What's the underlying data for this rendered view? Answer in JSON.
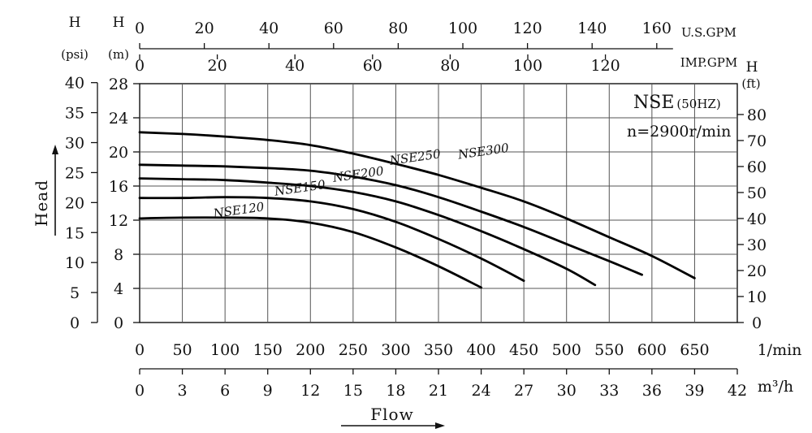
{
  "chart_data": {
    "type": "line",
    "title": "NSE",
    "title_suffix": "(50HZ)",
    "subtitle": "n=2900r/min",
    "x_axes": {
      "lpm": {
        "unit": "1/min",
        "ticks": [
          0,
          50,
          100,
          150,
          200,
          250,
          300,
          350,
          400,
          450,
          500,
          550,
          600,
          650
        ]
      },
      "m3h": {
        "unit": "m³/h",
        "ticks": [
          0,
          3,
          6,
          9,
          12,
          15,
          18,
          21,
          24,
          27,
          30,
          33,
          36,
          39,
          42
        ]
      },
      "us_gpm": {
        "unit": "U.S.GPM",
        "ticks": [
          0,
          20,
          40,
          60,
          80,
          100,
          120,
          140,
          160
        ]
      },
      "imp_gpm": {
        "unit": "IMP.GPM",
        "ticks": [
          0,
          20,
          40,
          60,
          80,
          100,
          120
        ]
      },
      "xlabel": "Flow"
    },
    "y_axes": {
      "psi": {
        "unit_top": "H",
        "unit": "(psi)",
        "ticks": [
          0,
          5,
          10,
          15,
          20,
          25,
          30,
          35,
          40
        ]
      },
      "m": {
        "unit_top": "H",
        "unit": "(m)",
        "ticks": [
          0,
          4,
          8,
          12,
          16,
          20,
          24,
          28
        ]
      },
      "ft": {
        "unit_top": "H",
        "unit": "(ft)",
        "ticks": [
          0,
          10,
          20,
          30,
          40,
          50,
          60,
          70,
          80
        ]
      },
      "ylabel": "Head"
    },
    "xlim_m3h": [
      0,
      42
    ],
    "ylim_m": [
      0,
      28
    ],
    "grid": true,
    "series": [
      {
        "name": "NSE120",
        "x": [
          0,
          3,
          6,
          9,
          12,
          15,
          18,
          21,
          24
        ],
        "y": [
          12.2,
          12.3,
          12.3,
          12.2,
          11.7,
          10.6,
          8.8,
          6.6,
          4.1
        ]
      },
      {
        "name": "NSE150",
        "x": [
          0,
          3,
          6,
          9,
          12,
          15,
          18,
          21,
          24,
          27
        ],
        "y": [
          14.6,
          14.6,
          14.7,
          14.6,
          14.2,
          13.3,
          11.8,
          9.8,
          7.5,
          4.9
        ]
      },
      {
        "name": "NSE200",
        "x": [
          0,
          3,
          6,
          9,
          12,
          15,
          18,
          21,
          24,
          27,
          30,
          32
        ],
        "y": [
          16.9,
          16.8,
          16.7,
          16.4,
          16.0,
          15.3,
          14.2,
          12.6,
          10.7,
          8.6,
          6.3,
          4.4
        ]
      },
      {
        "name": "NSE250",
        "x": [
          0,
          3,
          6,
          9,
          12,
          15,
          18,
          21,
          24,
          27,
          30,
          33,
          35.3
        ],
        "y": [
          18.5,
          18.4,
          18.3,
          18.1,
          17.8,
          17.1,
          16.1,
          14.7,
          13.0,
          11.2,
          9.2,
          7.2,
          5.6
        ]
      },
      {
        "name": "NSE300",
        "x": [
          0,
          3,
          6,
          9,
          12,
          15,
          18,
          21,
          24,
          27,
          30,
          33,
          36,
          39
        ],
        "y": [
          22.3,
          22.1,
          21.8,
          21.4,
          20.8,
          19.8,
          18.6,
          17.3,
          15.8,
          14.2,
          12.2,
          10.0,
          7.8,
          5.2
        ]
      }
    ],
    "series_label_at": [
      {
        "x": 7.0,
        "y": 12.7
      },
      {
        "x": 11.3,
        "y": 15.3
      },
      {
        "x": 15.4,
        "y": 16.9
      },
      {
        "x": 19.4,
        "y": 18.9
      },
      {
        "x": 24.2,
        "y": 19.6
      }
    ]
  }
}
